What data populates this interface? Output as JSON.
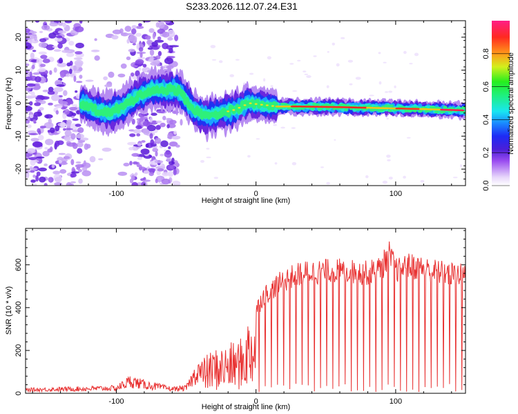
{
  "title": "S233.2026.112.07.24.E31",
  "chart_data": [
    {
      "type": "heatmap",
      "xlabel": "Height of straight line (km)",
      "ylabel": "Frequency (Hz)",
      "xlim": [
        -165,
        150
      ],
      "ylim": [
        -25,
        25
      ],
      "xticks": [
        -100,
        0,
        100
      ],
      "yticks": [
        -20,
        -10,
        0,
        10,
        20
      ],
      "colorbar": {
        "label": "Normalized spectral amplitude",
        "range": [
          0,
          1
        ],
        "ticks": [
          "0.0",
          "0.2",
          "0.4",
          "0.6",
          "0.8"
        ]
      },
      "ridge": {
        "x": [
          -125,
          -115,
          -105,
          -95,
          -85,
          -75,
          -55,
          -45,
          -35,
          -25,
          -15,
          -5,
          5,
          15,
          30,
          60,
          90,
          120,
          150
        ],
        "y": [
          0,
          -2,
          -3,
          -1,
          2,
          4,
          4,
          -2,
          -4,
          -3,
          -2,
          0,
          -0.5,
          -1,
          -1,
          -1.2,
          -1.5,
          -1.8,
          -2.2
        ]
      }
    },
    {
      "type": "line",
      "xlabel": "Height of straight line (km)",
      "ylabel": "SNR (10 * v/v)",
      "xlim": [
        -165,
        150
      ],
      "ylim": [
        0,
        770
      ],
      "xticks": [
        -100,
        0,
        100
      ],
      "yticks": [
        0,
        200,
        400,
        600
      ],
      "series": [
        {
          "name": "SNR",
          "color": "#e83030",
          "envelope_x": [
            -165,
            -100,
            -90,
            -80,
            -60,
            -50,
            -40,
            -30,
            -20,
            -10,
            -5,
            0,
            5,
            10,
            20,
            30,
            40,
            60,
            80,
            90,
            95,
            100,
            110,
            130,
            150
          ],
          "envelope_y": [
            20,
            30,
            70,
            50,
            25,
            30,
            150,
            200,
            220,
            250,
            350,
            400,
            470,
            500,
            550,
            580,
            590,
            595,
            585,
            610,
            680,
            600,
            620,
            590,
            570
          ]
        }
      ]
    }
  ]
}
